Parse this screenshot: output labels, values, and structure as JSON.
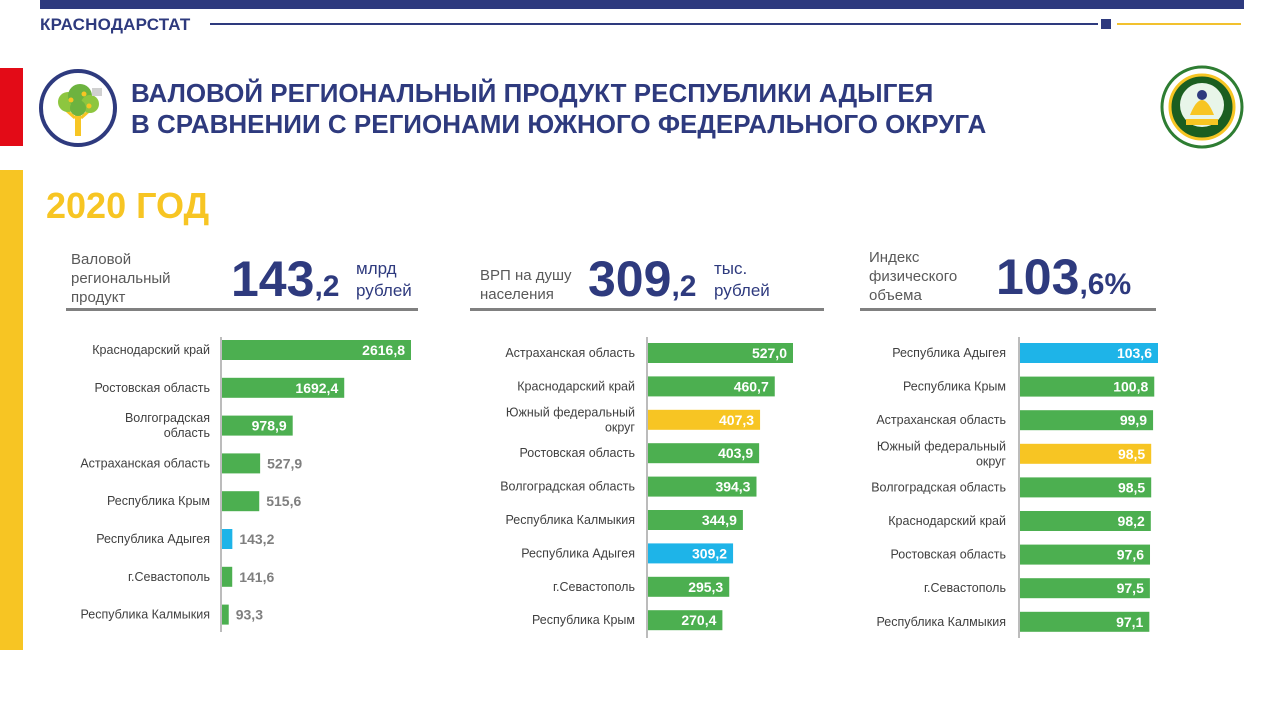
{
  "header": {
    "brand": "КРАСНОДАРСТАТ",
    "title_line1": "ВАЛОВОЙ РЕГИОНАЛЬНЫЙ ПРОДУКТ РЕСПУБЛИКИ АДЫГЕЯ",
    "title_line2": "В СРАВНЕНИИ С РЕГИОНАМИ ЮЖНОГО ФЕДЕРАЛЬНОГО ОКРУГА",
    "year": "2020 ГОД"
  },
  "colors": {
    "navy": "#2e3a7e",
    "green": "#4caf50",
    "blue": "#1eb4e8",
    "yellow": "#f7c523",
    "red": "#e30b17"
  },
  "kpis": [
    {
      "label_lines": [
        "Валовой",
        "региональный",
        "продукт"
      ],
      "value_int": "143",
      "value_frac": ",2",
      "unit_lines": [
        "млрд",
        "рублей"
      ]
    },
    {
      "label_lines": [
        "ВРП на душу",
        "населения"
      ],
      "value_int": "309",
      "value_frac": ",2",
      "unit_lines": [
        "тыс.",
        "рублей"
      ]
    },
    {
      "label_lines": [
        "Индекс",
        "физического",
        "объема"
      ],
      "value_int": "103",
      "value_frac": ",6%",
      "unit_lines": []
    }
  ],
  "chart_data": [
    {
      "type": "bar",
      "orientation": "horizontal",
      "categories": [
        [
          "Краснодарский край"
        ],
        [
          "Ростовская область"
        ],
        [
          "Волгоградская",
          "область"
        ],
        [
          "Астраханская область"
        ],
        [
          "Республика Крым"
        ],
        [
          "Республика Адыгея"
        ],
        [
          "г.Севастополь"
        ],
        [
          "Республика Калмыкия"
        ]
      ],
      "values": [
        2616.8,
        1692.4,
        978.9,
        527.9,
        515.6,
        143.2,
        141.6,
        93.3
      ],
      "labels": [
        "2616,8",
        "1692,4",
        "978,9",
        "527,9",
        "515,6",
        "143,2",
        "141,6",
        "93,3"
      ],
      "highlight": {
        "5": "blue"
      },
      "xlim": [
        0,
        2616.8
      ]
    },
    {
      "type": "bar",
      "orientation": "horizontal",
      "categories": [
        [
          "Астраханская область"
        ],
        [
          "Краснодарский край"
        ],
        [
          "Южный федеральный",
          "округ"
        ],
        [
          "Ростовская область"
        ],
        [
          "Волгоградская область"
        ],
        [
          "Республика Калмыкия"
        ],
        [
          "Республика Адыгея"
        ],
        [
          "г.Севастополь"
        ],
        [
          "Республика Крым"
        ]
      ],
      "values": [
        527.0,
        460.7,
        407.3,
        403.9,
        394.3,
        344.9,
        309.2,
        295.3,
        270.4
      ],
      "labels": [
        "527,0",
        "460,7",
        "407,3",
        "403,9",
        "394,3",
        "344,9",
        "309,2",
        "295,3",
        "270,4"
      ],
      "highlight": {
        "2": "yellow",
        "6": "blue"
      },
      "xlim": [
        0,
        527.0
      ]
    },
    {
      "type": "bar",
      "orientation": "horizontal",
      "categories": [
        [
          "Республика Адыгея"
        ],
        [
          "Республика Крым"
        ],
        [
          "Астраханская область"
        ],
        [
          "Южный федеральный",
          "округ"
        ],
        [
          "Волгоградская область"
        ],
        [
          "Краснодарский край"
        ],
        [
          "Ростовская область"
        ],
        [
          "г.Севастополь"
        ],
        [
          "Республика Калмыкия"
        ]
      ],
      "values": [
        103.6,
        100.8,
        99.9,
        98.5,
        98.5,
        98.2,
        97.6,
        97.5,
        97.1
      ],
      "labels": [
        "103,6",
        "100,8",
        "99,9",
        "98,5",
        "98,5",
        "98,2",
        "97,6",
        "97,5",
        "97,1"
      ],
      "highlight": {
        "0": "blue",
        "3": "yellow"
      },
      "xlim": [
        0,
        103.6
      ]
    }
  ]
}
